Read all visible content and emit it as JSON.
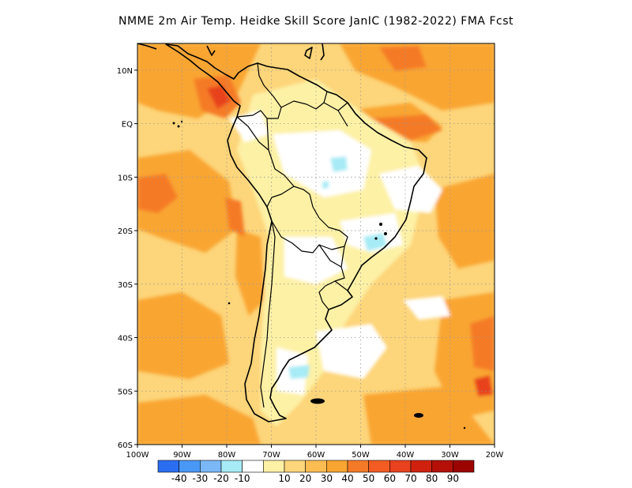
{
  "title": "NMME  2m Air Temp. Heidke Skill Score JanIC (1982-2022) FMA Fcst",
  "map": {
    "lon_range": [
      -100,
      -20
    ],
    "lat_range": [
      -60,
      15
    ],
    "lat_ticks": [
      {
        "lat": 10,
        "label": "10N"
      },
      {
        "lat": 0,
        "label": "EQ"
      },
      {
        "lat": -10,
        "label": "10S"
      },
      {
        "lat": -20,
        "label": "20S"
      },
      {
        "lat": -30,
        "label": "30S"
      },
      {
        "lat": -40,
        "label": "40S"
      },
      {
        "lat": -50,
        "label": "50S"
      },
      {
        "lat": -60,
        "label": "60S"
      }
    ],
    "lon_ticks": [
      {
        "lon": -100,
        "label": "100W"
      },
      {
        "lon": -90,
        "label": "90W"
      },
      {
        "lon": -80,
        "label": "80W"
      },
      {
        "lon": -70,
        "label": "70W"
      },
      {
        "lon": -60,
        "label": "60W"
      },
      {
        "lon": -50,
        "label": "50W"
      },
      {
        "lon": -40,
        "label": "40W"
      },
      {
        "lon": -30,
        "label": "30W"
      },
      {
        "lon": -20,
        "label": "20W"
      }
    ],
    "grid": true,
    "background_color": "#fdd57a",
    "fill_colors": {
      "orange": "#f9a531",
      "dark_orange": "#f57a28",
      "red": "#e8421e",
      "light_yellow": "#fdf1a6",
      "white": "#ffffff",
      "light_blue": "#a6ebf5"
    }
  },
  "colorbar": {
    "colors": [
      "#2b6ef2",
      "#4a98f5",
      "#7ab8f8",
      "#a6ebf5",
      "#ffffff",
      "#fdf1a6",
      "#fdd57a",
      "#fbbc52",
      "#f9a531",
      "#f57a28",
      "#f35c22",
      "#e8421e",
      "#d0210f",
      "#b41007",
      "#9b0400"
    ],
    "labels": [
      "-40",
      "-30",
      "-20",
      "-10",
      "10",
      "20",
      "30",
      "40",
      "50",
      "60",
      "70",
      "80",
      "90"
    ]
  }
}
